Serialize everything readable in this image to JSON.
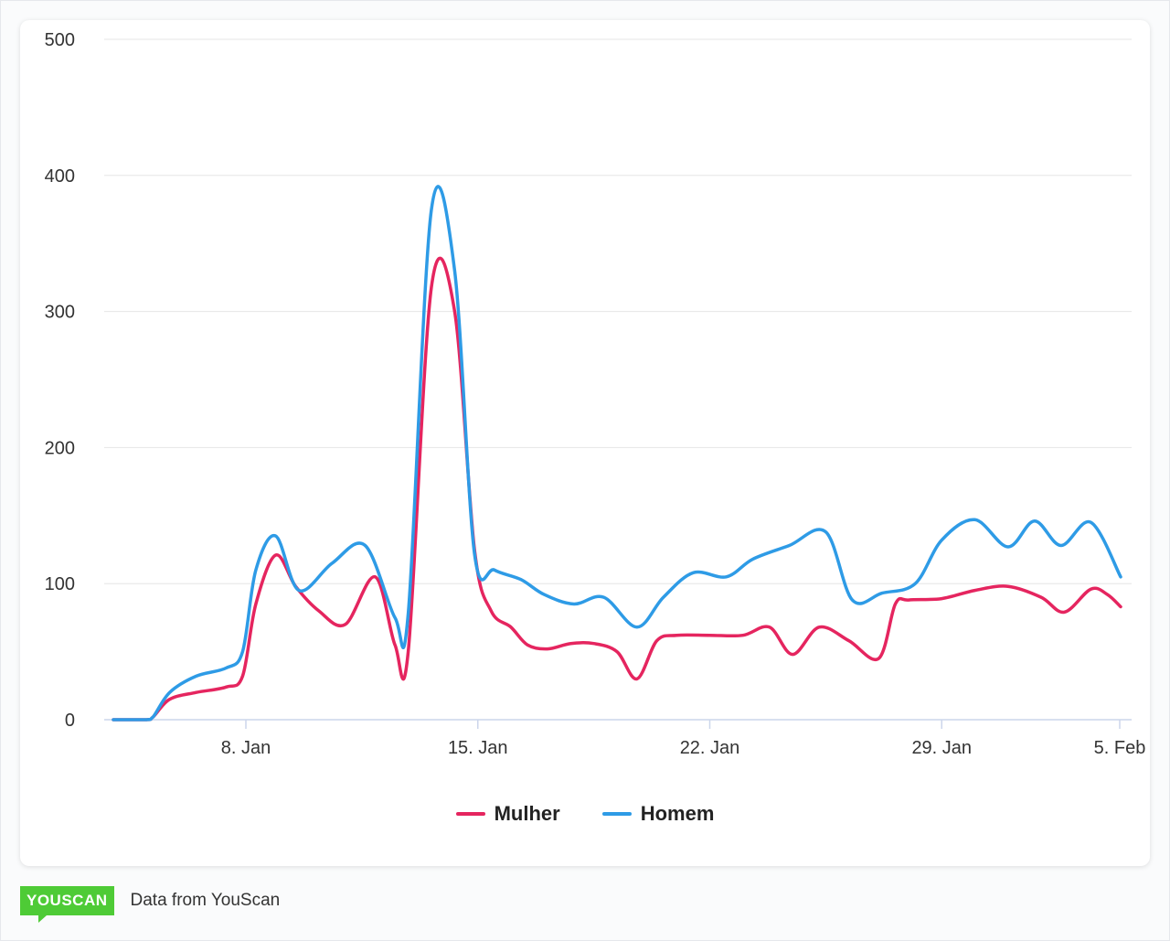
{
  "chart_data": {
    "type": "line",
    "title": "",
    "xlabel": "",
    "ylabel": "",
    "ylim": [
      0,
      500
    ],
    "y_ticks": [
      0,
      100,
      200,
      300,
      400,
      500
    ],
    "x_ticks": [
      {
        "day": 8,
        "label": "8. Jan"
      },
      {
        "day": 15,
        "label": "15. Jan"
      },
      {
        "day": 22,
        "label": "22. Jan"
      },
      {
        "day": 29,
        "label": "29. Jan"
      },
      {
        "day": 36,
        "label": "5. Feb"
      }
    ],
    "x_start_day": 3.9,
    "x_end_day": 36.1,
    "series": [
      {
        "name": "Mulher",
        "color": "#e5255f",
        "points": [
          [
            4,
            0
          ],
          [
            5,
            0
          ],
          [
            5.2,
            2
          ],
          [
            5.7,
            15
          ],
          [
            6.5,
            20
          ],
          [
            7.4,
            24
          ],
          [
            7.9,
            32
          ],
          [
            8.3,
            85
          ],
          [
            8.9,
            121
          ],
          [
            9.5,
            98
          ],
          [
            10.2,
            80
          ],
          [
            11.0,
            70
          ],
          [
            11.9,
            105
          ],
          [
            12.5,
            55
          ],
          [
            12.9,
            50
          ],
          [
            13.6,
            318
          ],
          [
            14.3,
            300
          ],
          [
            14.9,
            125
          ],
          [
            15.4,
            80
          ],
          [
            16.0,
            68
          ],
          [
            16.5,
            55
          ],
          [
            17.1,
            52
          ],
          [
            17.8,
            56
          ],
          [
            18.5,
            56
          ],
          [
            19.2,
            50
          ],
          [
            19.8,
            30
          ],
          [
            20.4,
            58
          ],
          [
            21.0,
            62
          ],
          [
            22.0,
            62
          ],
          [
            23.0,
            62
          ],
          [
            23.8,
            68
          ],
          [
            24.5,
            48
          ],
          [
            25.3,
            68
          ],
          [
            26.2,
            58
          ],
          [
            27.1,
            45
          ],
          [
            27.6,
            85
          ],
          [
            28.0,
            88
          ],
          [
            29.0,
            89
          ],
          [
            30.0,
            95
          ],
          [
            31.0,
            98
          ],
          [
            32.0,
            90
          ],
          [
            32.7,
            79
          ],
          [
            33.5,
            96
          ],
          [
            34.0,
            92
          ],
          [
            34.4,
            83
          ]
        ]
      },
      {
        "name": "Homem",
        "color": "#2e9be6",
        "points": [
          [
            4,
            0
          ],
          [
            5,
            0
          ],
          [
            5.2,
            2
          ],
          [
            5.7,
            20
          ],
          [
            6.5,
            32
          ],
          [
            7.4,
            38
          ],
          [
            7.9,
            50
          ],
          [
            8.3,
            110
          ],
          [
            8.9,
            135
          ],
          [
            9.6,
            95
          ],
          [
            10.6,
            115
          ],
          [
            11.6,
            128
          ],
          [
            12.5,
            75
          ],
          [
            12.9,
            78
          ],
          [
            13.6,
            375
          ],
          [
            14.3,
            330
          ],
          [
            14.9,
            122
          ],
          [
            15.5,
            110
          ],
          [
            16.3,
            103
          ],
          [
            17.0,
            92
          ],
          [
            17.9,
            85
          ],
          [
            18.8,
            90
          ],
          [
            19.8,
            68
          ],
          [
            20.6,
            90
          ],
          [
            21.5,
            108
          ],
          [
            22.5,
            105
          ],
          [
            23.3,
            118
          ],
          [
            24.4,
            128
          ],
          [
            25.5,
            138
          ],
          [
            26.3,
            88
          ],
          [
            27.2,
            93
          ],
          [
            28.2,
            100
          ],
          [
            29.0,
            132
          ],
          [
            30.0,
            147
          ],
          [
            31.0,
            127
          ],
          [
            31.8,
            146
          ],
          [
            32.6,
            128
          ],
          [
            33.5,
            145
          ],
          [
            34.4,
            105
          ]
        ]
      }
    ],
    "legend_position": "bottom-center"
  },
  "legend": {
    "items": [
      {
        "label": "Mulher",
        "color": "#e5255f"
      },
      {
        "label": "Homem",
        "color": "#2e9be6"
      }
    ]
  },
  "footer": {
    "logo_text": "YOUSCAN",
    "source_text": "Data from YouScan"
  }
}
